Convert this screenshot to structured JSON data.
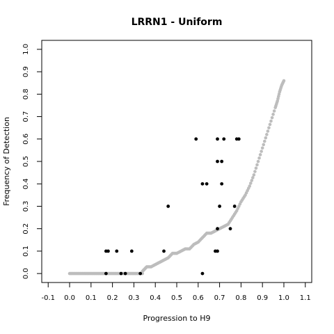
{
  "chart_data": {
    "type": "scatter",
    "title": "LRRN1 - Uniform",
    "xlabel": "Progression to H9",
    "ylabel": "Frequency of Detection",
    "xlim": [
      -0.13,
      1.13
    ],
    "ylim": [
      -0.04,
      1.04
    ],
    "x_ticks": [
      "-0.1",
      "0.0",
      "0.1",
      "0.2",
      "0.3",
      "0.4",
      "0.5",
      "0.6",
      "0.7",
      "0.8",
      "0.9",
      "1.0",
      "1.1"
    ],
    "y_ticks": [
      "0.0",
      "0.1",
      "0.2",
      "0.3",
      "0.4",
      "0.5",
      "0.6",
      "0.7",
      "0.8",
      "0.9",
      "1.0"
    ],
    "grid": false,
    "series": [
      {
        "color": "#bdbdbd",
        "curve": {
          "x_start": 0.0,
          "x_end": 1.0,
          "count": 220,
          "flat_until": 0.34,
          "exponent": 3.2,
          "y_max": 0.86
        },
        "values": [
          [
            0.34,
            0.01
          ],
          [
            0.35,
            0.02
          ],
          [
            0.36,
            0.03
          ],
          [
            0.38,
            0.03
          ],
          [
            0.4,
            0.04
          ],
          [
            0.42,
            0.05
          ],
          [
            0.44,
            0.06
          ],
          [
            0.46,
            0.07
          ],
          [
            0.48,
            0.09
          ],
          [
            0.5,
            0.09
          ],
          [
            0.52,
            0.1
          ],
          [
            0.54,
            0.11
          ],
          [
            0.56,
            0.11
          ],
          [
            0.58,
            0.13
          ],
          [
            0.6,
            0.14
          ],
          [
            0.62,
            0.16
          ],
          [
            0.64,
            0.18
          ],
          [
            0.66,
            0.18
          ],
          [
            0.68,
            0.19
          ],
          [
            0.7,
            0.2
          ],
          [
            0.72,
            0.21
          ],
          [
            0.74,
            0.22
          ],
          [
            0.76,
            0.25
          ],
          [
            0.78,
            0.28
          ],
          [
            0.8,
            0.32
          ],
          [
            0.82,
            0.35
          ],
          [
            0.84,
            0.39
          ],
          [
            0.86,
            0.44
          ],
          [
            0.88,
            0.5
          ],
          [
            0.9,
            0.56
          ],
          [
            0.92,
            0.62
          ],
          [
            0.94,
            0.68
          ],
          [
            0.96,
            0.74
          ],
          [
            0.97,
            0.77
          ],
          [
            0.98,
            0.81
          ],
          [
            0.99,
            0.84
          ],
          [
            1.0,
            0.86
          ]
        ]
      },
      {
        "color": "#000000",
        "values": [
          [
            0.17,
            0.1
          ],
          [
            0.18,
            0.1
          ],
          [
            0.22,
            0.1
          ],
          [
            0.29,
            0.1
          ],
          [
            0.17,
            0.0
          ],
          [
            0.24,
            0.0
          ],
          [
            0.26,
            0.0
          ],
          [
            0.33,
            0.0
          ],
          [
            0.44,
            0.1
          ],
          [
            0.46,
            0.3
          ],
          [
            0.59,
            0.6
          ],
          [
            0.62,
            0.4
          ],
          [
            0.64,
            0.4
          ],
          [
            0.62,
            0.0
          ],
          [
            0.68,
            0.1
          ],
          [
            0.69,
            0.1
          ],
          [
            0.69,
            0.2
          ],
          [
            0.7,
            0.3
          ],
          [
            0.69,
            0.5
          ],
          [
            0.71,
            0.5
          ],
          [
            0.71,
            0.4
          ],
          [
            0.69,
            0.6
          ],
          [
            0.72,
            0.6
          ],
          [
            0.75,
            0.2
          ],
          [
            0.77,
            0.3
          ],
          [
            0.78,
            0.6
          ],
          [
            0.79,
            0.6
          ]
        ]
      }
    ]
  }
}
